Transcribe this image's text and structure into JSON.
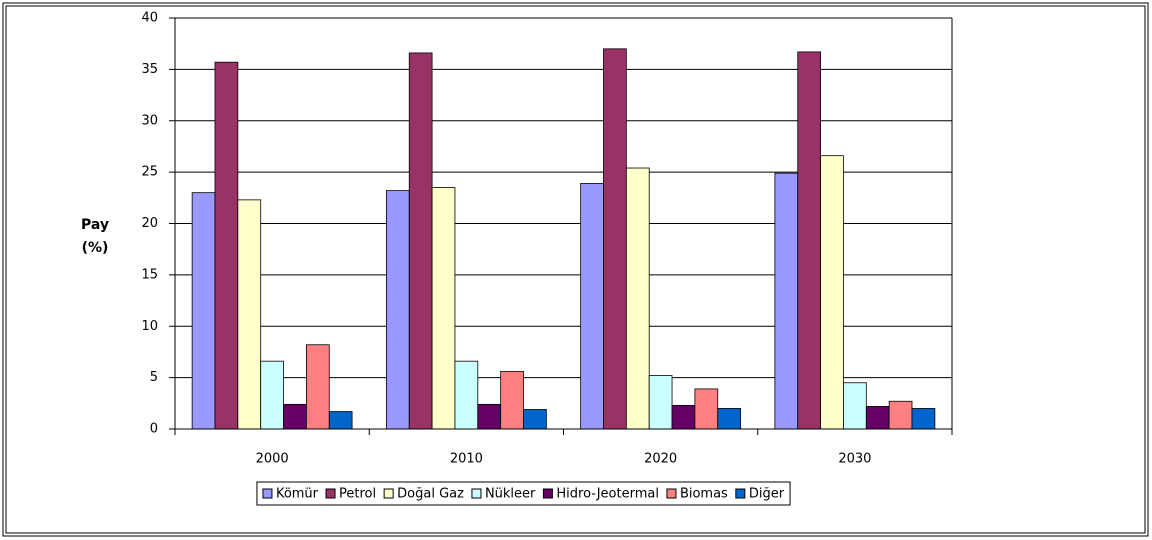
{
  "chart_data": {
    "type": "bar",
    "y_label": [
      "Pay",
      "(%)"
    ],
    "categories": [
      "2000",
      "2010",
      "2020",
      "2030"
    ],
    "series": [
      {
        "name": "Kömür",
        "color": "#9999ff",
        "values": [
          23,
          23.2,
          23.9,
          24.9
        ]
      },
      {
        "name": "Petrol",
        "color": "#993366",
        "values": [
          35.7,
          36.6,
          37,
          36.7
        ]
      },
      {
        "name": "Doğal Gaz",
        "color": "#ffffcc",
        "values": [
          22.3,
          23.5,
          25.4,
          26.6
        ]
      },
      {
        "name": "Nükleer",
        "color": "#ccffff",
        "values": [
          6.6,
          6.6,
          5.2,
          4.5
        ]
      },
      {
        "name": "Hidro-Jeotermal",
        "color": "#660066",
        "values": [
          2.4,
          2.4,
          2.3,
          2.2
        ]
      },
      {
        "name": "Biomas",
        "color": "#ff8080",
        "values": [
          8.2,
          5.6,
          3.9,
          2.7
        ]
      },
      {
        "name": "Diğer",
        "color": "#0066cc",
        "values": [
          1.7,
          1.9,
          2,
          2
        ]
      }
    ],
    "ylim": [
      0,
      40
    ],
    "yticks": [
      0,
      5,
      10,
      15,
      20,
      25,
      30,
      35,
      40
    ],
    "grid": true,
    "legend": "bottom"
  }
}
